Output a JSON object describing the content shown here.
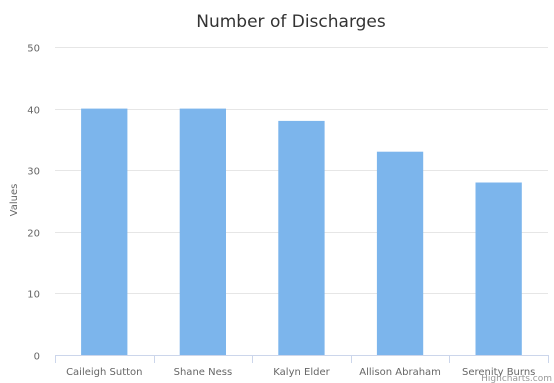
{
  "chart_data": {
    "type": "bar",
    "title": "Number of Discharges",
    "xlabel": "",
    "ylabel": "Values",
    "categories": [
      "Caileigh Sutton",
      "Shane Ness",
      "Kalyn Elder",
      "Allison Abraham",
      "Serenity Burns"
    ],
    "values": [
      40,
      40,
      38,
      33,
      28
    ],
    "ylim": [
      0,
      50
    ],
    "yticks": [
      "0",
      "10",
      "20",
      "30",
      "40",
      "50"
    ],
    "grid": true,
    "legend": "none",
    "bar_color": "#7cb5ec",
    "grid_color": "#e6e6e6",
    "axis_color": "#ccd6eb"
  },
  "credits": "Highcharts.com"
}
